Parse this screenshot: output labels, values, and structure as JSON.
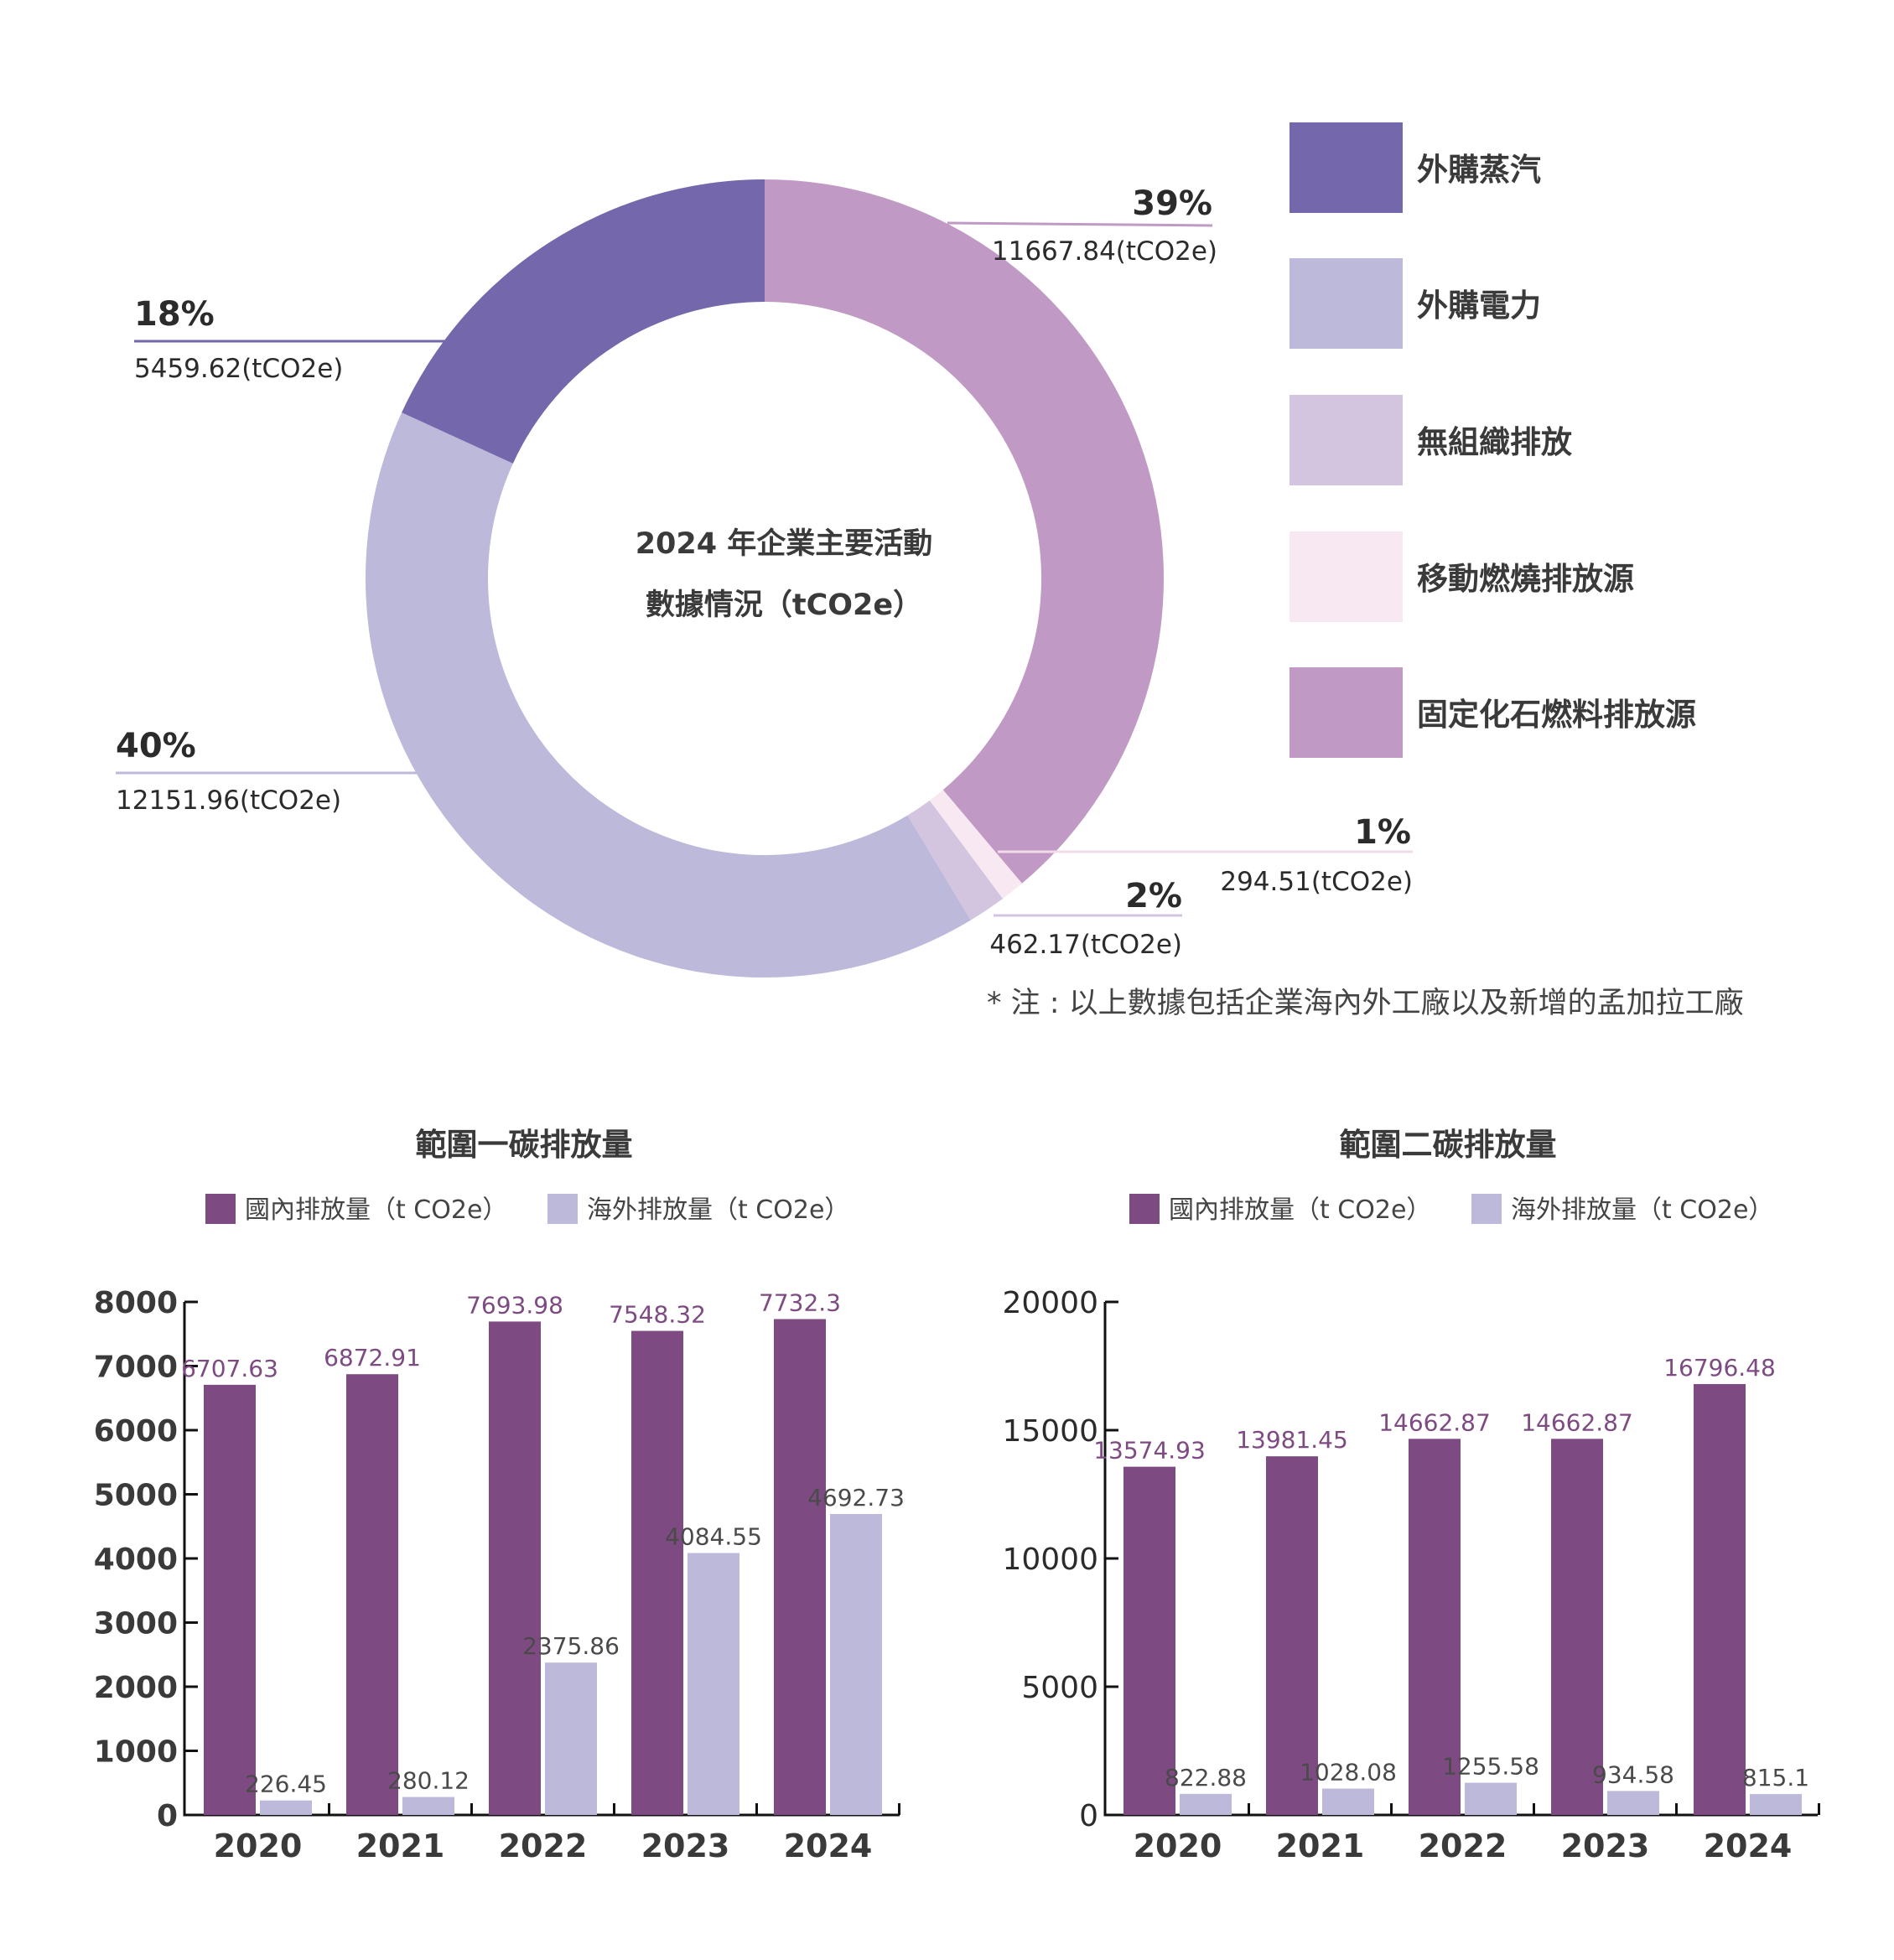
{
  "colors": {
    "steam": "#7467ab",
    "power": "#bcb9da",
    "fugitive": "#d3c5e0",
    "mobile": "#f7e8f1",
    "fixed": "#c09ac4",
    "domestic": "#7d4a82",
    "overseas": "#bcb9da"
  },
  "chart_data": [
    {
      "type": "pie",
      "title": "2024 年企業主要活動數據情況（tCO2e）",
      "title_lines": [
        "2024 年企業主要活動",
        "數據情況（tCO2e）"
      ],
      "slices": [
        {
          "key": "steam",
          "label": "外購蒸汽",
          "value": 5459.62,
          "percent": "18%",
          "value_label": "5459.62(tCO2e)"
        },
        {
          "key": "power",
          "label": "外購電力",
          "value": 12151.96,
          "percent": "40%",
          "value_label": "12151.96(tCO2e)"
        },
        {
          "key": "fugitive",
          "label": "無組織排放",
          "value": 462.17,
          "percent": "2%",
          "value_label": "462.17(tCO2e)"
        },
        {
          "key": "mobile",
          "label": "移動燃燒排放源",
          "value": 294.51,
          "percent": "1%",
          "value_label": "294.51(tCO2e)"
        },
        {
          "key": "fixed",
          "label": "固定化石燃料排放源",
          "value": 11667.84,
          "percent": "39%",
          "value_label": "11667.84(tCO2e)"
        }
      ],
      "legend_order": [
        "steam",
        "power",
        "fugitive",
        "mobile",
        "fixed"
      ],
      "legend_position": "right",
      "note": "* 注 : 以上數據包括企業海內外工廠以及新增的孟加拉工廠"
    },
    {
      "type": "bar",
      "title": "範圍一碳排放量",
      "categories": [
        "2020",
        "2021",
        "2022",
        "2023",
        "2024"
      ],
      "series": [
        {
          "name": "國內排放量（t CO2e）",
          "key": "domestic",
          "values": [
            6707.63,
            6872.91,
            7693.98,
            7548.32,
            7732.3
          ],
          "labels": [
            "6707.63",
            "6872.91",
            "7693.98",
            "7548.32",
            "7732.3"
          ]
        },
        {
          "name": "海外排放量（t CO2e）",
          "key": "overseas",
          "values": [
            226.45,
            280.12,
            2375.86,
            4084.55,
            4692.73
          ],
          "labels": [
            "226.45",
            "280.12",
            "2375.86",
            "4084.55",
            "4692.73"
          ]
        }
      ],
      "ylim": [
        0,
        8000
      ],
      "yticks": [
        "0",
        "1000",
        "2000",
        "3000",
        "4000",
        "5000",
        "6000",
        "7000",
        "8000"
      ],
      "legend_position": "top"
    },
    {
      "type": "bar",
      "title": "範圍二碳排放量",
      "categories": [
        "2020",
        "2021",
        "2022",
        "2023",
        "2024"
      ],
      "series": [
        {
          "name": "國內排放量（t CO2e）",
          "key": "domestic",
          "values": [
            13574.93,
            13981.45,
            14662.87,
            14662.87,
            16796.48
          ],
          "labels": [
            "13574.93",
            "13981.45",
            "14662.87",
            "14662.87",
            "16796.48"
          ]
        },
        {
          "name": "海外排放量（t CO2e）",
          "key": "overseas",
          "values": [
            822.88,
            1028.08,
            1255.58,
            934.58,
            815.1
          ],
          "labels": [
            "822.88",
            "1028.08",
            "1255.58",
            "934.58",
            "815.1"
          ]
        }
      ],
      "ylim": [
        0,
        20000
      ],
      "yticks": [
        "0",
        "5000",
        "10000",
        "15000",
        "20000"
      ],
      "legend_position": "top"
    }
  ]
}
